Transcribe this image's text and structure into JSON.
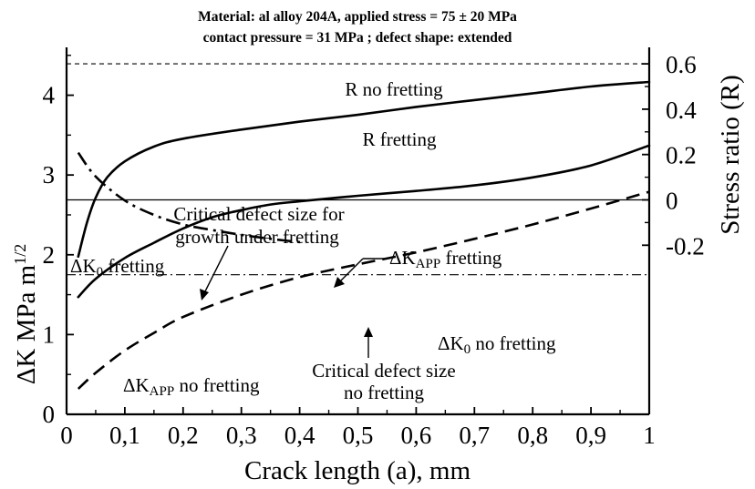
{
  "chart_data": {
    "type": "line",
    "title": "Material: al alloy 204A, applied stress = 75 ± 20 MPa",
    "subtitle": "contact pressure = 31 MPa ; defect shape: extended",
    "xlabel": "Crack length (a), mm",
    "ylabel": "ΔK MPa m",
    "ylabel_sup": "1/2",
    "y2label": "Stress ratio (R)",
    "xlim": [
      0,
      1
    ],
    "ylim": [
      0,
      4.5
    ],
    "y2lim": [
      -0.3,
      0.6
    ],
    "x_ticks": [
      "0",
      "0,1",
      "0,2",
      "0,3",
      "0,4",
      "0,5",
      "0,6",
      "0,7",
      "0,8",
      "0,9",
      "1"
    ],
    "y_ticks": [
      "0",
      "1",
      "2",
      "3",
      "4"
    ],
    "y2_ticks": [
      "0.6",
      "0.4",
      "0.2",
      "0",
      "-0.2"
    ],
    "reference_lines": [
      {
        "axis": "y2",
        "value": 0.6,
        "style": "dashed"
      },
      {
        "axis": "y2",
        "value": 0.0,
        "style": "solid"
      },
      {
        "axis": "y",
        "value": 1.75,
        "style": "dashdot"
      }
    ],
    "series": [
      {
        "axis": "y2",
        "style": "solid",
        "x": [
          0.02,
          0.035,
          0.05,
          0.07,
          0.1,
          0.15,
          0.2,
          0.3,
          0.4,
          0.5,
          0.6,
          0.7,
          0.8,
          0.9,
          1.0
        ],
        "y": [
          -0.25,
          -0.1,
          0.01,
          0.1,
          0.17,
          0.235,
          0.27,
          0.31,
          0.345,
          0.375,
          0.41,
          0.44,
          0.47,
          0.5,
          0.52
        ]
      },
      {
        "axis": "y",
        "style": "solid",
        "x": [
          0.02,
          0.05,
          0.1,
          0.15,
          0.2,
          0.25,
          0.3,
          0.35,
          0.4,
          0.5,
          0.6,
          0.7,
          0.8,
          0.9,
          1.0
        ],
        "y": [
          1.47,
          1.7,
          1.96,
          2.15,
          2.33,
          2.47,
          2.56,
          2.63,
          2.67,
          2.74,
          2.8,
          2.87,
          2.97,
          3.12,
          3.37
        ]
      },
      {
        "axis": "y",
        "style": "dashed",
        "x": [
          0.02,
          0.05,
          0.1,
          0.15,
          0.2,
          0.3,
          0.4,
          0.5,
          0.6,
          0.7,
          0.8,
          0.9,
          1.0
        ],
        "y": [
          0.32,
          0.52,
          0.8,
          1.02,
          1.22,
          1.5,
          1.72,
          1.88,
          2.03,
          2.2,
          2.38,
          2.58,
          2.79
        ]
      },
      {
        "axis": "y",
        "style": "dashdot",
        "x": [
          0.02,
          0.05,
          0.1,
          0.15,
          0.2,
          0.25,
          0.3,
          0.35,
          0.41
        ],
        "y": [
          3.28,
          2.98,
          2.68,
          2.5,
          2.38,
          2.31,
          2.25,
          2.2,
          2.15
        ]
      }
    ],
    "annotations": {
      "r_no_fretting": "R no fretting",
      "r_fretting": "R fretting",
      "critical_fretting_line1": "Critical defect size for",
      "critical_fretting_line2": "growth under fretting",
      "dk0_fretting_main": "ΔK",
      "dk0_fretting_sub": "0",
      "dk0_fretting_rest": " fretting",
      "dkapp_fretting_main": "ΔK",
      "dkapp_fretting_sub": "APP",
      "dkapp_fretting_rest": " fretting",
      "dk0_no_fretting_main": "ΔK",
      "dk0_no_fretting_sub": "0",
      "dk0_no_fretting_rest": " no fretting",
      "dkapp_no_fretting_main": "ΔK",
      "dkapp_no_fretting_sub": "APP",
      "dkapp_no_fretting_rest": " no fretting",
      "critical_no_fretting_line1": "Critical defect size",
      "critical_no_fretting_line2": "no fretting"
    }
  }
}
